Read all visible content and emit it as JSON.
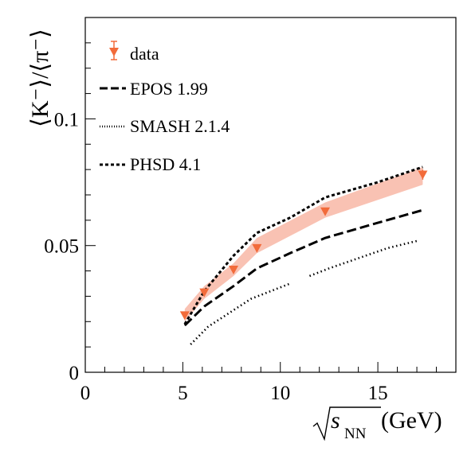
{
  "chart_data": {
    "type": "line",
    "xlim": [
      0,
      19
    ],
    "ylim": [
      0,
      0.14
    ],
    "x_ticks": [
      0,
      5,
      10,
      15
    ],
    "x_tick_labels": [
      "0",
      "5",
      "10",
      "15"
    ],
    "y_ticks": [
      0,
      0.05,
      0.1
    ],
    "y_tick_labels": [
      "0",
      "0.05",
      "0.1"
    ],
    "xlabel_root": "s",
    "xlabel_sub": "NN",
    "xlabel_unit": "(GeV)",
    "ylabel": "⟨K⁻⟩/⟨π⁻⟩",
    "legend_position": "top-left",
    "grid": false,
    "colors": {
      "data": "#f26b3a",
      "band": "#f9c2b3",
      "model": "#000000"
    },
    "data_series": {
      "name": "data",
      "x": [
        5.1,
        6.1,
        7.6,
        8.8,
        12.3,
        17.3
      ],
      "y": [
        0.0225,
        0.0315,
        0.0405,
        0.049,
        0.0635,
        0.078
      ],
      "yerr": [
        0.001,
        0.0012,
        0.0012,
        0.0012,
        0.0012,
        0.002
      ]
    },
    "band": {
      "x": [
        5.1,
        6.1,
        7.6,
        8.8,
        12.3,
        17.3
      ],
      "low": [
        0.02,
        0.029,
        0.038,
        0.047,
        0.061,
        0.074
      ],
      "high": [
        0.025,
        0.034,
        0.043,
        0.053,
        0.067,
        0.081
      ]
    },
    "series": [
      {
        "name": "EPOS 1.99",
        "style": "long-dash",
        "x": [
          5.1,
          6.1,
          7.6,
          8.8,
          10.5,
          12.3,
          15,
          17.3
        ],
        "y": [
          0.0185,
          0.026,
          0.034,
          0.041,
          0.047,
          0.053,
          0.059,
          0.064
        ]
      },
      {
        "name": "SMASH 2.1.4",
        "style": "dotted",
        "x": [
          5.4,
          6.3,
          7.5,
          8.5,
          9.5,
          10.5
        ],
        "y": [
          0.011,
          0.018,
          0.024,
          0.029,
          0.032,
          0.035
        ],
        "x2": [
          11.5,
          12.5,
          14,
          15.5,
          17.1
        ],
        "y2": [
          0.038,
          0.041,
          0.045,
          0.049,
          0.052
        ]
      },
      {
        "name": "PHSD 4.1",
        "style": "short-dash",
        "x": [
          5.1,
          6.1,
          7.6,
          8.8,
          10.5,
          12.3,
          15,
          17.3
        ],
        "y": [
          0.019,
          0.032,
          0.046,
          0.055,
          0.061,
          0.069,
          0.075,
          0.081
        ]
      }
    ],
    "legend": [
      "data",
      "EPOS 1.99",
      "SMASH 2.1.4",
      "PHSD 4.1"
    ]
  }
}
